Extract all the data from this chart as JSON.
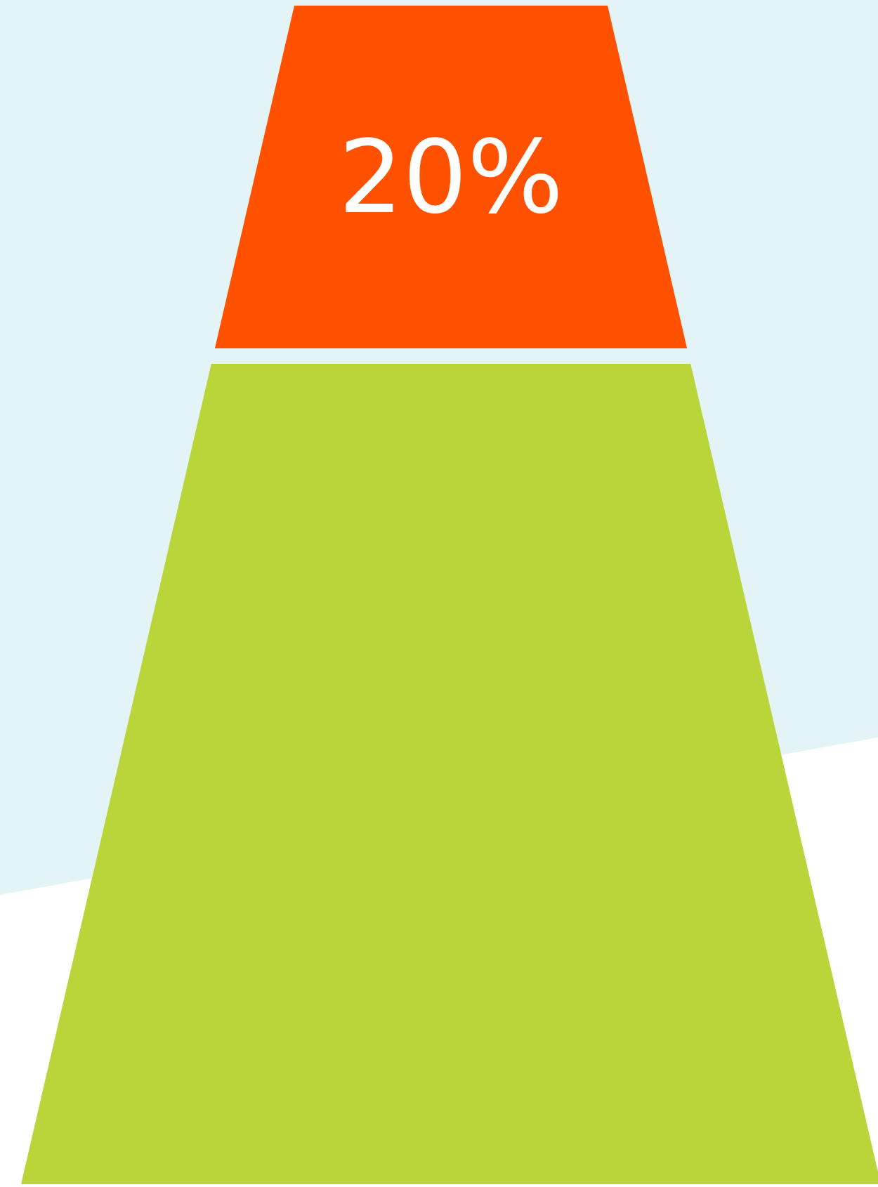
{
  "chart_data": {
    "type": "other",
    "categories": [
      null,
      null
    ],
    "values": [
      20,
      null
    ],
    "colors": [
      "#ff5100",
      "#b9d53a"
    ],
    "value_labels": [
      "20%",
      null
    ]
  }
}
